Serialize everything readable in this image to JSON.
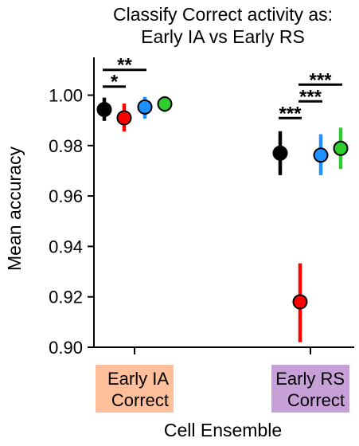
{
  "chart_data": {
    "type": "scatter",
    "title_lines": [
      "Classify Correct activity as:",
      "Early IA vs Early RS"
    ],
    "xlabel": "Cell Ensemble",
    "ylabel": "Mean accuracy",
    "ylim": [
      0.9,
      1.015
    ],
    "yticks": [
      "0.90",
      "0.92",
      "0.94",
      "0.96",
      "0.98",
      "1.00"
    ],
    "grid": false,
    "categories": [
      {
        "lines": [
          "Early IA",
          "Correct"
        ],
        "color": "#ffbf9a"
      },
      {
        "lines": [
          "Early RS",
          "Correct"
        ],
        "color": "#c8a0d8"
      }
    ],
    "series": [
      {
        "color": "#000000",
        "values": [
          0.9943,
          0.977
        ],
        "low": [
          0.9898,
          0.9683
        ],
        "high": [
          0.999,
          0.9857
        ]
      },
      {
        "color": "#ff0000",
        "values": [
          0.991,
          0.918
        ],
        "low": [
          0.9856,
          0.902
        ],
        "high": [
          0.9967,
          0.9333
        ]
      },
      {
        "color": "#1e90ff",
        "values": [
          0.9953,
          0.9762
        ],
        "low": [
          0.9907,
          0.9683
        ],
        "high": [
          0.9993,
          0.9845
        ]
      },
      {
        "color": "#2ecc2e",
        "values": [
          0.9965,
          0.9789
        ],
        "low": [
          0.9933,
          0.9707
        ],
        "high": [
          0.9996,
          0.9871
        ]
      }
    ],
    "significance": [
      {
        "group": 0,
        "from": 0,
        "to": 1,
        "level": 1,
        "label": "*"
      },
      {
        "group": 0,
        "from": 0,
        "to": 2,
        "level": 2,
        "label": "**"
      },
      {
        "group": 1,
        "from": 0,
        "to": 1,
        "level": 1,
        "label": "***"
      },
      {
        "group": 1,
        "from": 1,
        "to": 2,
        "level": 2,
        "label": "***"
      },
      {
        "group": 1,
        "from": 1,
        "to": 3,
        "level": 3,
        "label": "***"
      }
    ]
  }
}
